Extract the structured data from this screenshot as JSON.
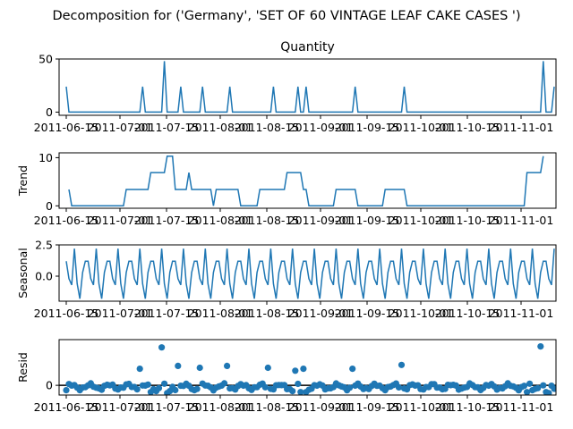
{
  "figure": {
    "suptitle": "Decomposition for ('Germany', 'SET OF 60 VINTAGE LEAF CAKE CASES ')"
  },
  "colors": {
    "line": "#1f77b4",
    "axis": "#000000",
    "background": "#ffffff"
  },
  "chart_data": [
    {
      "type": "line",
      "title": "Quantity",
      "ylabel": "",
      "ylim": [
        -3,
        50
      ],
      "yticks": [
        0,
        50
      ],
      "xticks": [
        "2011-06-15",
        "2011-07-01",
        "2011-07-15",
        "2011-08-01",
        "2011-08-15",
        "2011-09-01",
        "2011-09-15",
        "2011-10-01",
        "2011-10-15",
        "2011-11-01"
      ],
      "x_range": [
        0,
        179
      ],
      "spikes": [
        [
          0,
          24
        ],
        [
          28,
          24
        ],
        [
          36,
          48
        ],
        [
          42,
          24
        ],
        [
          50,
          24
        ],
        [
          60,
          24
        ],
        [
          76,
          24
        ],
        [
          85,
          24
        ],
        [
          88,
          24
        ],
        [
          106,
          24
        ],
        [
          124,
          24
        ],
        [
          175,
          48
        ],
        [
          179,
          24
        ]
      ]
    },
    {
      "type": "line",
      "title": "",
      "ylabel": "Trend",
      "ylim": [
        -0.5,
        11
      ],
      "yticks": [
        0,
        10
      ],
      "xticks": [
        "2011-06-15",
        "2011-07-01",
        "2011-07-15",
        "2011-08-01",
        "2011-08-15",
        "2011-09-01",
        "2011-09-15",
        "2011-10-01",
        "2011-10-15",
        "2011-11-01"
      ],
      "x_range": [
        0,
        179
      ],
      "points": [
        [
          1,
          3.4
        ],
        [
          2,
          0
        ],
        [
          21,
          0
        ],
        [
          22,
          3.4
        ],
        [
          30,
          3.4
        ],
        [
          31,
          6.9
        ],
        [
          36,
          6.9
        ],
        [
          37,
          10.3
        ],
        [
          39,
          10.3
        ],
        [
          40,
          3.4
        ],
        [
          44,
          3.4
        ],
        [
          45,
          6.9
        ],
        [
          46,
          3.4
        ],
        [
          53,
          3.4
        ],
        [
          54,
          0
        ],
        [
          55,
          3.4
        ],
        [
          63,
          3.4
        ],
        [
          64,
          0
        ],
        [
          70,
          0
        ],
        [
          71,
          3.4
        ],
        [
          80,
          3.4
        ],
        [
          81,
          6.9
        ],
        [
          86,
          6.9
        ],
        [
          87,
          3.4
        ],
        [
          88,
          3.4
        ],
        [
          89,
          0
        ],
        [
          98,
          0
        ],
        [
          99,
          3.4
        ],
        [
          106,
          3.4
        ],
        [
          107,
          0
        ],
        [
          116,
          0
        ],
        [
          117,
          3.4
        ],
        [
          124,
          3.4
        ],
        [
          125,
          0
        ],
        [
          168,
          0
        ],
        [
          169,
          6.9
        ],
        [
          174,
          6.9
        ],
        [
          175,
          10.3
        ]
      ]
    },
    {
      "type": "line",
      "title": "",
      "ylabel": "Seasonal",
      "ylim": [
        -2,
        2.5
      ],
      "yticks": [
        0.0,
        2.5
      ],
      "ytick_labels": [
        "0.0",
        "2.5"
      ],
      "xticks": [
        "2011-06-15",
        "2011-07-01",
        "2011-07-15",
        "2011-08-01",
        "2011-08-15",
        "2011-09-01",
        "2011-09-15",
        "2011-10-01",
        "2011-10-15",
        "2011-11-01"
      ],
      "x_range": [
        0,
        179
      ],
      "pattern": [
        1.2,
        -0.2,
        -0.7,
        2.2,
        -0.6,
        -1.8,
        0.3,
        1.2
      ]
    },
    {
      "type": "scatter",
      "title": "",
      "ylabel": "Resid",
      "ylim": [
        -10,
        47
      ],
      "yticks": [
        0
      ],
      "baseline": 0,
      "xticks": [
        "2011-06-15",
        "2011-07-01",
        "2011-07-15",
        "2011-08-01",
        "2011-08-15",
        "2011-09-01",
        "2011-09-15",
        "2011-10-01",
        "2011-10-15",
        "2011-11-01"
      ],
      "x_range": [
        0,
        179
      ],
      "outliers": [
        [
          27,
          17
        ],
        [
          35,
          39
        ],
        [
          41,
          20
        ],
        [
          49,
          18
        ],
        [
          59,
          20
        ],
        [
          74,
          18
        ],
        [
          84,
          15
        ],
        [
          87,
          17
        ],
        [
          105,
          17
        ],
        [
          123,
          21
        ],
        [
          174,
          40
        ]
      ],
      "low_points": [
        [
          0,
          -5
        ],
        [
          31,
          -7
        ],
        [
          33,
          -6
        ],
        [
          37,
          -8
        ],
        [
          38,
          -6
        ],
        [
          47,
          -5
        ],
        [
          83,
          -6
        ],
        [
          86,
          -7
        ],
        [
          88,
          -7
        ],
        [
          169,
          -7
        ],
        [
          171,
          -5
        ],
        [
          176,
          -7
        ],
        [
          177,
          -8
        ]
      ]
    }
  ]
}
